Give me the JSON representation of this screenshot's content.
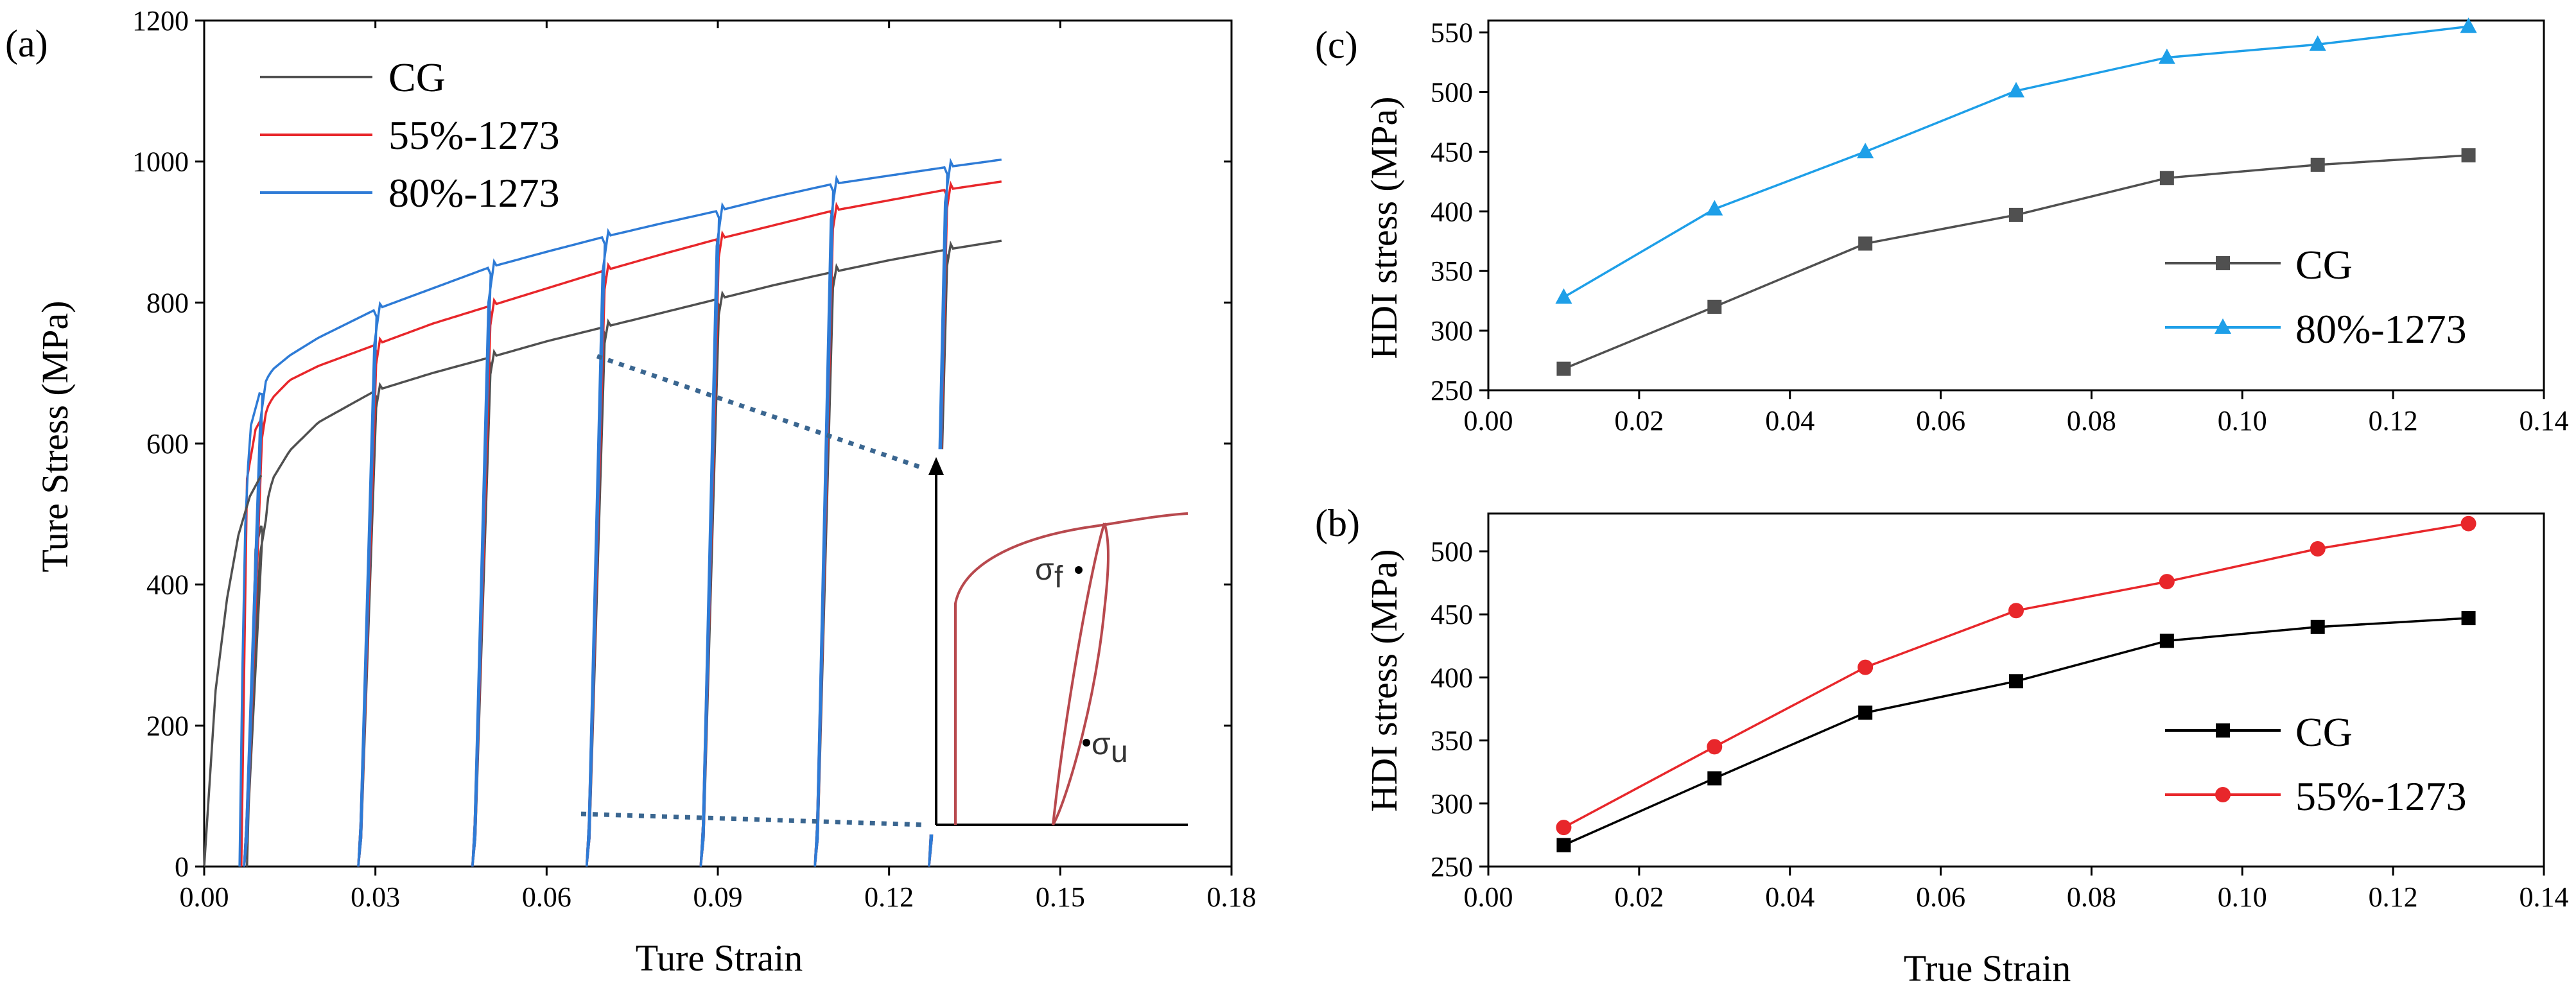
{
  "colors": {
    "cg": "#505050",
    "cg_dark": "#000000",
    "s55": "#e8272b",
    "s80": "#2e7bd6",
    "s80_light": "#1e9fe8",
    "inset": "#b8494e",
    "dotted": "#3a6690"
  },
  "chart_data": [
    {
      "id": "a",
      "panel_label": "(a)",
      "type": "line",
      "title": "",
      "xlabel": "Ture Strain",
      "ylabel": "Ture Stress (MPa)",
      "xlim": [
        0,
        0.18
      ],
      "ylim": [
        0,
        1200
      ],
      "xticks": [
        0,
        0.03,
        0.06,
        0.09,
        0.12,
        0.15,
        0.18
      ],
      "xtick_labels": [
        "0.00",
        "0.03",
        "0.06",
        "0.09",
        "0.12",
        "0.15",
        "0.18"
      ],
      "yticks": [
        0,
        200,
        400,
        600,
        800,
        1000,
        1200
      ],
      "ytick_labels": [
        "0",
        "200",
        "400",
        "600",
        "800",
        "1000",
        "1200"
      ],
      "legend_position": "top-left",
      "unload_strains": [
        0.01,
        0.03,
        0.05,
        0.07,
        0.09,
        0.11,
        0.13
      ],
      "series": [
        {
          "name": "CG",
          "color_key": "cg",
          "offset_x": 0.0075,
          "envelope": {
            "x": [
              0.0075,
              0.009,
              0.012,
              0.015,
              0.02,
              0.03,
              0.04,
              0.05,
              0.06,
              0.07,
              0.08,
              0.09,
              0.1,
              0.11,
              0.12,
              0.13,
              0.14
            ],
            "y": [
              0,
              450,
              550,
              590,
              630,
              675,
              700,
              722,
              745,
              765,
              785,
              805,
              825,
              843,
              860,
              875,
              888
            ]
          },
          "unload_drop": 40
        },
        {
          "name": "55%-1273",
          "color_key": "s55",
          "offset_x": 0.0065,
          "envelope": {
            "x": [
              0.0065,
              0.0075,
              0.009,
              0.012,
              0.015,
              0.02,
              0.03,
              0.04,
              0.05,
              0.06,
              0.07,
              0.08,
              0.09,
              0.1,
              0.11,
              0.12,
              0.13,
              0.14
            ],
            "y": [
              0,
              550,
              620,
              665,
              690,
              710,
              740,
              770,
              795,
              820,
              845,
              868,
              890,
              910,
              930,
              945,
              960,
              972
            ]
          },
          "unload_drop": 45
        },
        {
          "name": "80%-1273",
          "color_key": "s80",
          "offset_x": 0.0062,
          "envelope": {
            "x": [
              0.0062,
              0.007,
              0.008,
              0.01,
              0.012,
              0.015,
              0.02,
              0.03,
              0.04,
              0.05,
              0.06,
              0.07,
              0.08,
              0.09,
              0.1,
              0.11,
              0.12,
              0.13,
              0.14
            ],
            "y": [
              0,
              450,
              620,
              680,
              705,
              725,
              750,
              790,
              820,
              850,
              872,
              893,
              912,
              930,
              950,
              968,
              980,
              992,
              1003
            ]
          },
          "unload_drop": 50
        }
      ],
      "cg_initial_curve": {
        "x": [
          0,
          0.002,
          0.004,
          0.006,
          0.008,
          0.01
        ],
        "y": [
          0,
          250,
          380,
          470,
          525,
          555
        ]
      },
      "inset": {
        "label_upper": "σ",
        "label_upper_sub": "f",
        "label_lower": "σ",
        "label_lower_sub": "u"
      }
    },
    {
      "id": "c",
      "panel_label": "(c)",
      "type": "line",
      "xlabel": "",
      "ylabel": "HDI stress (MPa)",
      "xlim": [
        0,
        0.14
      ],
      "ylim": [
        250,
        560
      ],
      "xticks": [
        0,
        0.02,
        0.04,
        0.06,
        0.08,
        0.1,
        0.12,
        0.14
      ],
      "xtick_labels": [
        "0.00",
        "0.02",
        "0.04",
        "0.06",
        "0.08",
        "0.10",
        "0.12",
        "0.14"
      ],
      "yticks": [
        250,
        300,
        350,
        400,
        450,
        500,
        550
      ],
      "ytick_labels": [
        "250",
        "300",
        "350",
        "400",
        "450",
        "500",
        "550"
      ],
      "legend_position": "bottom-right",
      "x": [
        0.01,
        0.03,
        0.05,
        0.07,
        0.09,
        0.11,
        0.13
      ],
      "series": [
        {
          "name": "CG",
          "color_key": "cg",
          "marker": "square",
          "values": [
            268,
            320,
            373,
            397,
            428,
            439,
            447
          ]
        },
        {
          "name": "80%-1273",
          "color_key": "s80_light",
          "marker": "triangle",
          "values": [
            328,
            402,
            450,
            501,
            529,
            540,
            555
          ]
        }
      ]
    },
    {
      "id": "b",
      "panel_label": "(b)",
      "type": "line",
      "xlabel": "True Strain",
      "ylabel": "HDI stress (MPa)",
      "xlim": [
        0,
        0.14
      ],
      "ylim": [
        250,
        530
      ],
      "xticks": [
        0,
        0.02,
        0.04,
        0.06,
        0.08,
        0.1,
        0.12,
        0.14
      ],
      "xtick_labels": [
        "0.00",
        "0.02",
        "0.04",
        "0.06",
        "0.08",
        "0.10",
        "0.12",
        "0.14"
      ],
      "yticks": [
        250,
        300,
        350,
        400,
        450,
        500
      ],
      "ytick_labels": [
        "250",
        "300",
        "350",
        "400",
        "450",
        "500"
      ],
      "legend_position": "bottom-right",
      "x": [
        0.01,
        0.03,
        0.05,
        0.07,
        0.09,
        0.11,
        0.13
      ],
      "series": [
        {
          "name": "CG",
          "color_key": "cg_dark",
          "marker": "square",
          "values": [
            267,
            320,
            372,
            397,
            429,
            440,
            447
          ]
        },
        {
          "name": "55%-1273",
          "color_key": "s55",
          "marker": "circle",
          "values": [
            281,
            345,
            408,
            453,
            476,
            502,
            522
          ]
        }
      ]
    }
  ]
}
